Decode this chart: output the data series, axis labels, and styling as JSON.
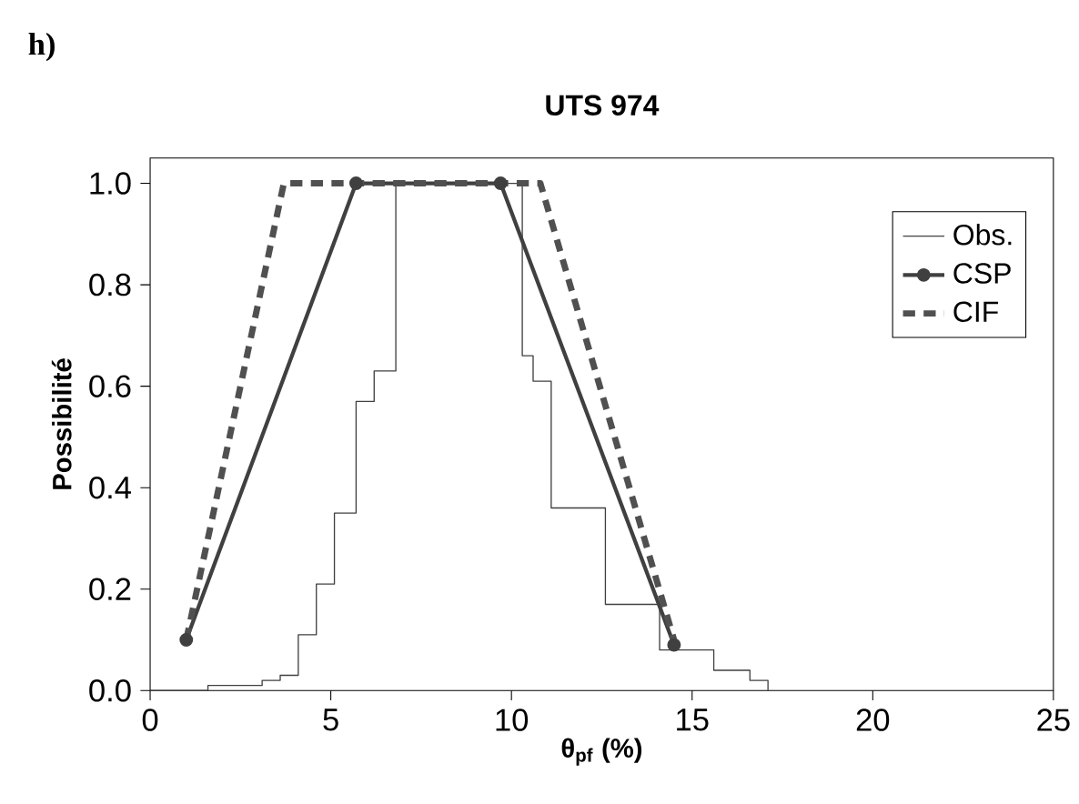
{
  "chart_data": {
    "type": "line",
    "title": "UTS 974",
    "xlabel": "θ$_{pf}$ (%)",
    "ylabel": "Possibilité",
    "annotations": [
      "h)"
    ],
    "xlim": [
      0,
      25
    ],
    "ylim": [
      0,
      1.05
    ],
    "xticks": [
      0,
      5,
      10,
      15,
      20,
      25
    ],
    "yticks": [
      {
        "value": 0,
        "label": "0.0"
      },
      {
        "value": 0.2,
        "label": "0.2"
      },
      {
        "value": 0.4,
        "label": "0.4"
      },
      {
        "value": 0.6,
        "label": "0.6"
      },
      {
        "value": 0.8,
        "label": "0.8"
      },
      {
        "value": 1,
        "label": "1.0"
      }
    ],
    "grid": false,
    "legend": "top right",
    "series": [
      {
        "name": "Obs.",
        "type": "step",
        "color": "#404040",
        "x": [
          0,
          1.6,
          3.1,
          3.6,
          4.1,
          4.6,
          5.1,
          5.7,
          6.2,
          6.8,
          10.3,
          10.6,
          11.1,
          12.6,
          14.1,
          15.6,
          16.6,
          17.1
        ],
        "values": [
          0,
          0.01,
          0.02,
          0.03,
          0.11,
          0.21,
          0.35,
          0.57,
          0.63,
          1.0,
          0.66,
          0.61,
          0.36,
          0.17,
          0.08,
          0.04,
          0.02,
          0
        ]
      },
      {
        "name": "CSP",
        "color": "#404040",
        "marker": "circle",
        "x": [
          1.0,
          5.7,
          9.7,
          14.5
        ],
        "values": [
          0.1,
          1.0,
          1.0,
          0.09
        ]
      },
      {
        "name": "CIF",
        "color": "#505050",
        "line_style": "dashed",
        "x": [
          1.0,
          3.7,
          10.8,
          14.5
        ],
        "values": [
          0.1,
          1.0,
          1.0,
          0.1
        ]
      }
    ]
  }
}
